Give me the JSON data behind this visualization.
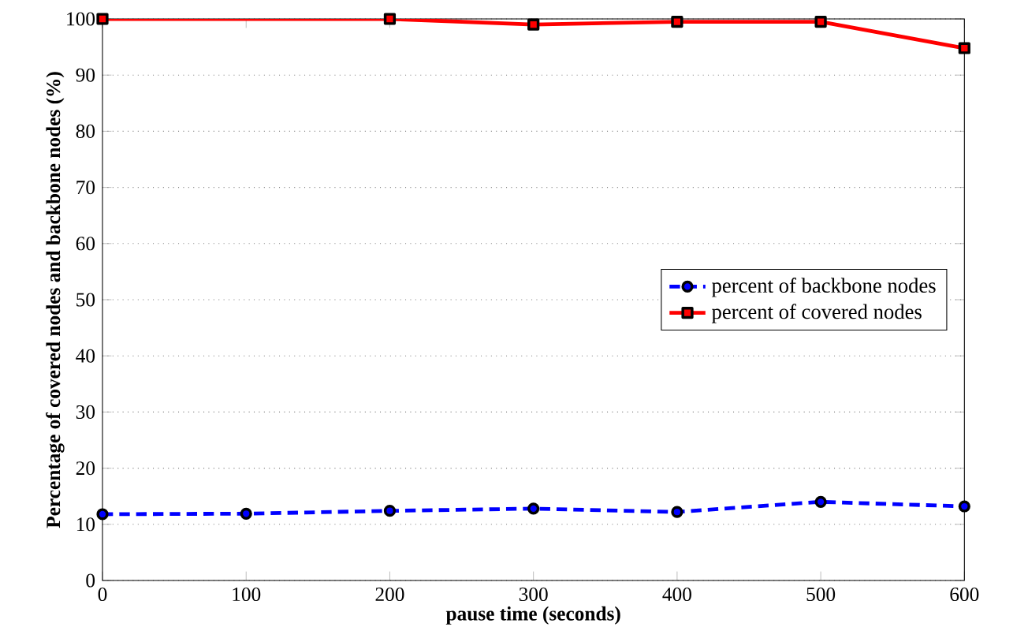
{
  "chart_data": {
    "type": "line",
    "xlabel": "pause time (seconds)",
    "ylabel": "Percentage of covered nodes and backbone nodes (%)",
    "x": [
      0,
      100,
      200,
      300,
      400,
      500,
      600
    ],
    "series": [
      {
        "name": "percent of backbone nodes",
        "color": "#0000ff",
        "line_style": "dashed",
        "marker": "circle",
        "values": [
          11.8,
          11.9,
          12.4,
          12.8,
          12.2,
          14,
          13.2
        ]
      },
      {
        "name": "percent of covered nodes",
        "color": "#ff0000",
        "line_style": "solid",
        "marker": "square",
        "x": [
          0,
          200,
          300,
          400,
          500,
          600
        ],
        "values": [
          100,
          100,
          99,
          99.5,
          99.5,
          94.8
        ]
      }
    ],
    "xlim": [
      0,
      600
    ],
    "xticks": [
      0,
      100,
      200,
      300,
      400,
      500,
      600
    ],
    "ylim": [
      0,
      100
    ],
    "yticks": [
      0,
      10,
      20,
      30,
      40,
      50,
      60,
      70,
      80,
      90,
      100
    ],
    "grid": "y",
    "legend": "right"
  }
}
